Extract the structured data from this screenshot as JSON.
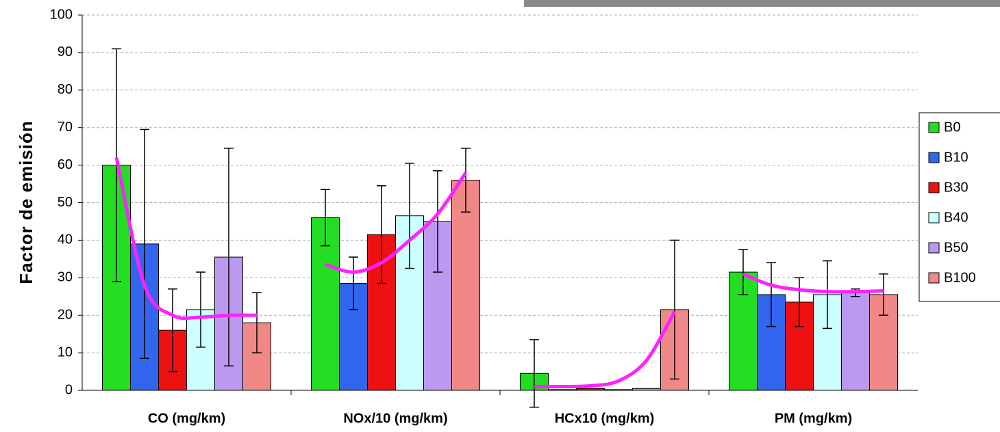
{
  "chart_data": {
    "type": "bar",
    "y_label": "Factor de emisión",
    "categories": [
      "CO (mg/km)",
      "NOx/10 (mg/km)",
      "HCx10 (mg/km)",
      "PM (mg/km)"
    ],
    "series": [
      {
        "name": "B0",
        "color": "#22dd22",
        "values": [
          60,
          46,
          4.5,
          31.5
        ],
        "errors": [
          31,
          7.5,
          9,
          6
        ]
      },
      {
        "name": "B10",
        "color": "#3366ee",
        "values": [
          39,
          28.5,
          0.2,
          25.5
        ],
        "errors": [
          30.5,
          7,
          0,
          8.5
        ]
      },
      {
        "name": "B30",
        "color": "#ee1111",
        "values": [
          16,
          41.5,
          0.5,
          23.5
        ],
        "errors": [
          11,
          13,
          0,
          6.5
        ]
      },
      {
        "name": "B40",
        "color": "#ccffff",
        "values": [
          21.5,
          46.5,
          0.2,
          25.5
        ],
        "errors": [
          10,
          14,
          0,
          9
        ]
      },
      {
        "name": "B50",
        "color": "#bb99ee",
        "values": [
          35.5,
          45,
          0.5,
          26
        ],
        "errors": [
          29,
          13.5,
          0,
          1
        ]
      },
      {
        "name": "B100",
        "color": "#f08888",
        "values": [
          18,
          56,
          21.5,
          25.5
        ],
        "errors": [
          8,
          8.5,
          18.5,
          5.5
        ]
      }
    ],
    "trend": {
      "color": "#ff22ff",
      "values": [
        [
          62,
          28,
          20,
          19.5,
          20,
          20
        ],
        [
          33.5,
          31.5,
          34,
          40,
          47,
          58
        ],
        [
          1,
          1,
          1.2,
          2.5,
          8,
          21
        ],
        [
          31,
          28,
          26.8,
          26.3,
          26.3,
          26.5
        ]
      ]
    },
    "ylim": [
      0,
      100
    ],
    "yticks": [
      0,
      10,
      20,
      30,
      40,
      50,
      60,
      70,
      80,
      90,
      100
    ],
    "grid": true
  }
}
